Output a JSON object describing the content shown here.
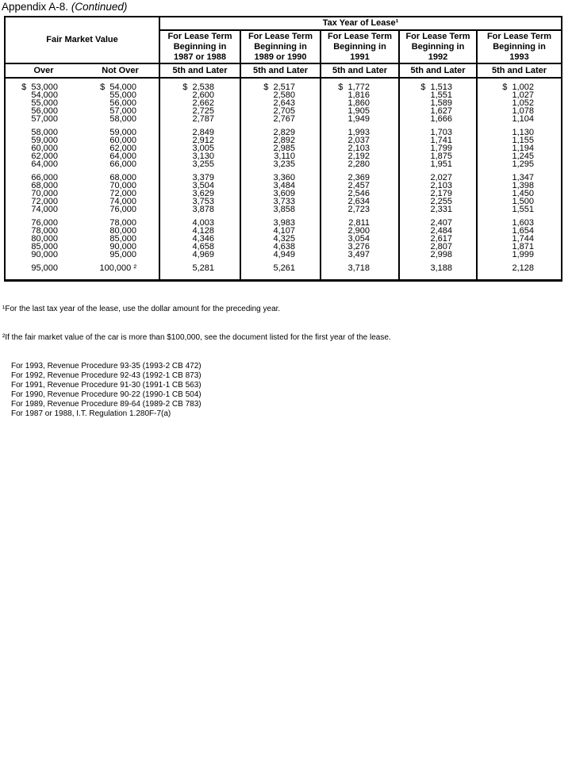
{
  "page": {
    "title_main": "Appendix A-8.",
    "title_continued": "(Continued)"
  },
  "table": {
    "tax_year_header": "Tax Year of Lease¹",
    "fmv_header": "Fair Market Value",
    "lease_term_line1": "For Lease Term",
    "lease_term_line2": "Beginning in",
    "lease_years": [
      "1987 or 1988",
      "1989 or 1990",
      "1991",
      "1992",
      "1993"
    ],
    "over_label": "Over",
    "not_over_label": "Not Over",
    "term_label": "5th and Later",
    "groups": [
      {
        "rows": [
          [
            "$  53,000",
            "$  54,000",
            "$  2,538",
            "$  2,517",
            "$  1,772",
            "$  1,513",
            "$  1,002"
          ],
          [
            "54,000",
            "55,000",
            "2,600",
            "2,580",
            "1,816",
            "1,551",
            "1,027"
          ],
          [
            "55,000",
            "56,000",
            "2,662",
            "2,643",
            "1,860",
            "1,589",
            "1,052"
          ],
          [
            "56,000",
            "57,000",
            "2,725",
            "2,705",
            "1,905",
            "1,627",
            "1,078"
          ],
          [
            "57,000",
            "58,000",
            "2,787",
            "2,767",
            "1,949",
            "1,666",
            "1,104"
          ]
        ]
      },
      {
        "rows": [
          [
            "58,000",
            "59,000",
            "2,849",
            "2,829",
            "1,993",
            "1,703",
            "1,130"
          ],
          [
            "59,000",
            "60,000",
            "2,912",
            "2,892",
            "2,037",
            "1,741",
            "1,155"
          ],
          [
            "60,000",
            "62,000",
            "3,005",
            "2,985",
            "2,103",
            "1,799",
            "1,194"
          ],
          [
            "62,000",
            "64,000",
            "3,130",
            "3,110",
            "2,192",
            "1,875",
            "1,245"
          ],
          [
            "64,000",
            "66,000",
            "3,255",
            "3,235",
            "2,280",
            "1,951",
            "1,295"
          ]
        ]
      },
      {
        "rows": [
          [
            "66,000",
            "68,000",
            "3,379",
            "3,360",
            "2,369",
            "2,027",
            "1,347"
          ],
          [
            "68,000",
            "70,000",
            "3,504",
            "3,484",
            "2,457",
            "2,103",
            "1,398"
          ],
          [
            "70,000",
            "72,000",
            "3,629",
            "3,609",
            "2,546",
            "2,179",
            "1,450"
          ],
          [
            "72,000",
            "74,000",
            "3,753",
            "3,733",
            "2,634",
            "2,255",
            "1,500"
          ],
          [
            "74,000",
            "76,000",
            "3,878",
            "3,858",
            "2,723",
            "2,331",
            "1,551"
          ]
        ]
      },
      {
        "rows": [
          [
            "76,000",
            "78,000",
            "4,003",
            "3,983",
            "2,811",
            "2,407",
            "1,603"
          ],
          [
            "78,000",
            "80,000",
            "4,128",
            "4,107",
            "2,900",
            "2,484",
            "1,654"
          ],
          [
            "80,000",
            "85,000",
            "4,346",
            "4,325",
            "3,054",
            "2,617",
            "1,744"
          ],
          [
            "85,000",
            "90,000",
            "4,658",
            "4,638",
            "3,276",
            "2,807",
            "1,871"
          ],
          [
            "90,000",
            "95,000",
            "4,969",
            "4,949",
            "3,497",
            "2,998",
            "1,999"
          ]
        ]
      },
      {
        "rows": [
          [
            "95,000",
            "100,000 ²",
            "5,281",
            "5,261",
            "3,718",
            "3,188",
            "2,128"
          ]
        ]
      }
    ]
  },
  "footnotes": {
    "note1": "¹For the last tax year of the lease, use the dollar amount for the preceding year.",
    "note2": "²If the fair market value of the car is more than $100,000, see the document listed for the first year of the lease.",
    "references": [
      "For 1993, Revenue Procedure 93-35 (1993-2 CB 472)",
      "For 1992, Revenue Procedure 92-43 (1992-1 CB 873)",
      "For 1991, Revenue Procedure 91-30 (1991-1 CB 563)",
      "For 1990, Revenue Procedure 90-22 (1990-1 CB 504)",
      "For 1989, Revenue Procedure 89-64 (1989-2 CB 783)",
      "For 1987 or 1988, I.T. Regulation 1.280F-7(a)"
    ]
  }
}
